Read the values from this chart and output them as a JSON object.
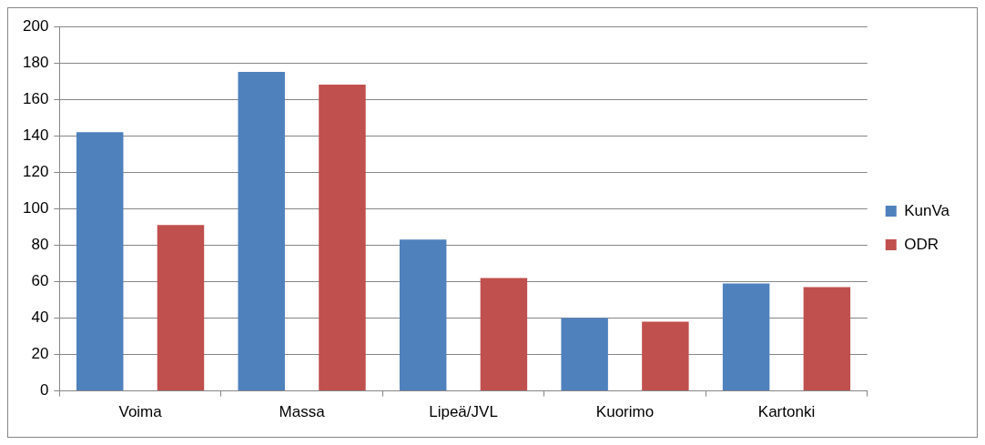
{
  "chart_data": {
    "type": "bar",
    "categories": [
      "Voima",
      "Massa",
      "Lipeä/JVL",
      "Kuorimo",
      "Kartonki"
    ],
    "series": [
      {
        "name": "KunVa",
        "color": "#4f81bd",
        "values": [
          142,
          175,
          83,
          40,
          59
        ]
      },
      {
        "name": "ODR",
        "color": "#c0504d",
        "values": [
          91,
          168,
          62,
          38,
          57
        ]
      }
    ],
    "ylim": [
      0,
      200
    ],
    "yticks": [
      0,
      20,
      40,
      60,
      80,
      100,
      120,
      140,
      160,
      180,
      200
    ],
    "grid": "y",
    "legend": "right"
  }
}
